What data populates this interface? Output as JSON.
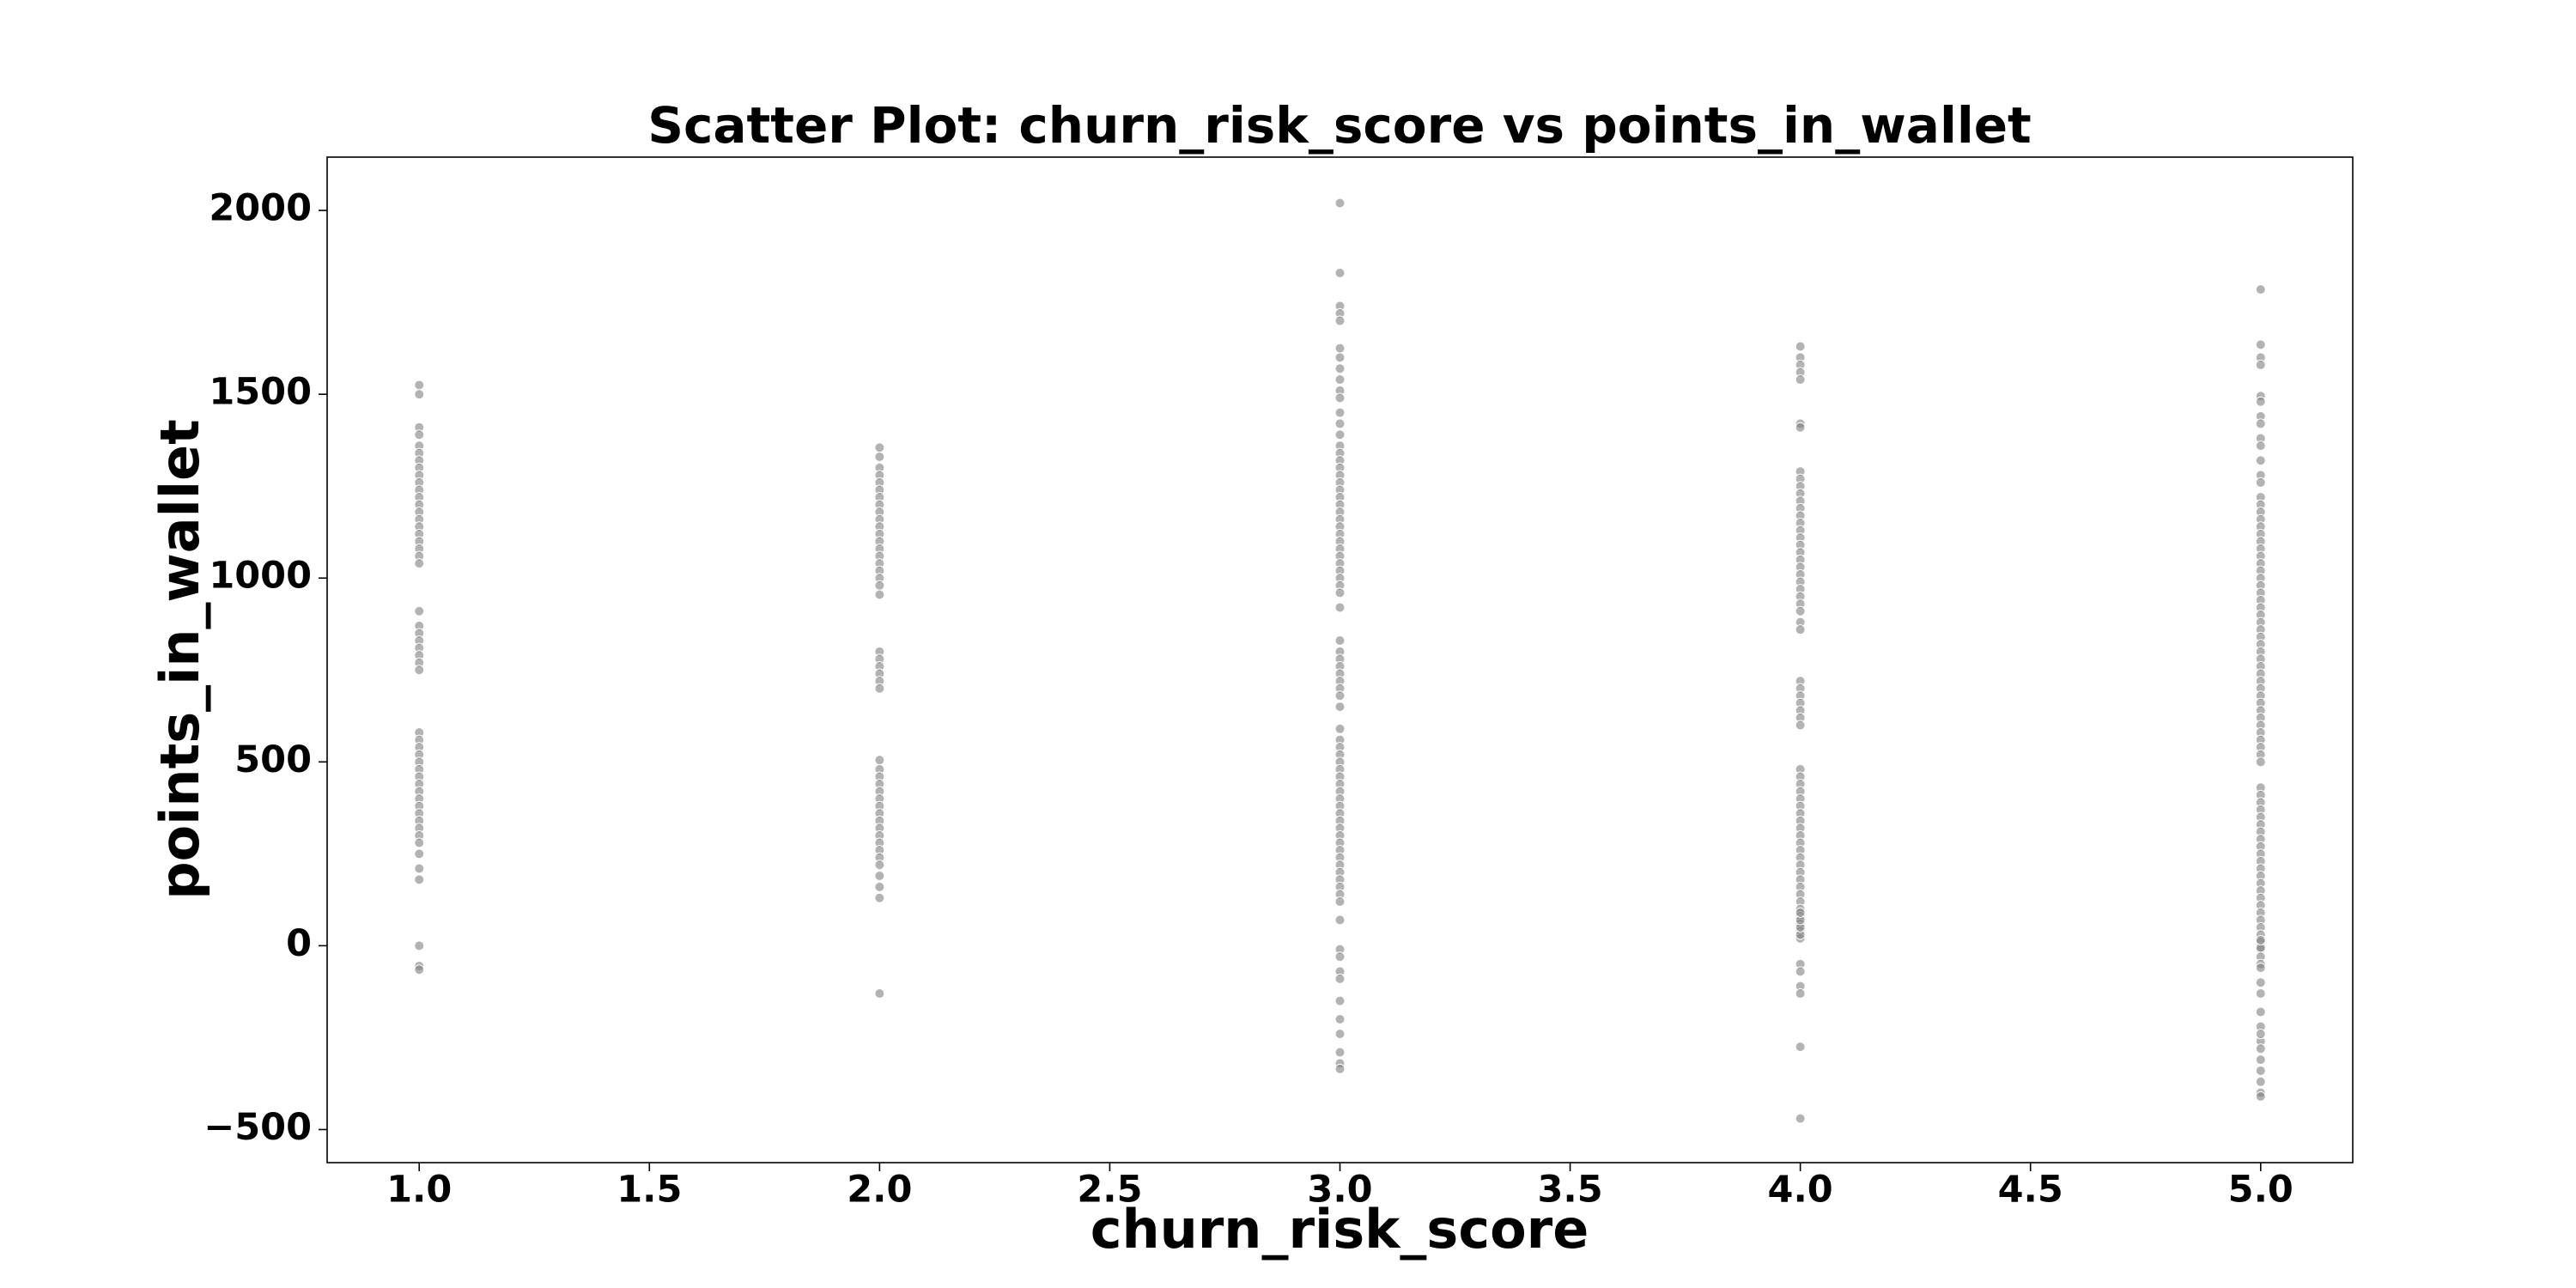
{
  "chart_data": {
    "type": "scatter",
    "title": "Scatter Plot: churn_risk_score vs points_in_wallet",
    "x_label": "churn_risk_score",
    "y_label": "points_in_wallet",
    "color": "#808080",
    "xlim": [
      0.8,
      5.2
    ],
    "ylim": [
      -590,
      2145
    ],
    "xticks": [
      {
        "value": 1,
        "label": "1.0"
      },
      1.5,
      {
        "value": 2,
        "label": "2.0"
      },
      2.5,
      {
        "value": 3,
        "label": "3.0"
      },
      3.5,
      {
        "value": 4,
        "label": "4.0"
      },
      4.5,
      {
        "value": 5,
        "label": "5.0"
      }
    ],
    "yticks": [
      {
        "value": -500,
        "label": "−500"
      },
      0,
      500,
      1000,
      1500,
      2000
    ],
    "x": [
      1,
      1,
      1,
      1,
      1,
      1,
      1,
      1,
      1,
      1,
      1,
      1,
      1,
      1,
      1,
      1,
      1,
      1,
      1,
      1,
      1,
      1,
      1,
      1,
      1,
      1,
      1,
      1,
      1,
      1,
      1,
      1,
      1,
      1,
      1,
      1,
      1,
      1,
      1,
      1,
      1,
      1,
      1,
      1,
      1,
      1,
      1,
      1,
      1,
      1,
      1,
      2,
      2,
      2,
      2,
      2,
      2,
      2,
      2,
      2,
      2,
      2,
      2,
      2,
      2,
      2,
      2,
      2,
      2,
      2,
      2,
      2,
      2,
      2,
      2,
      2,
      2,
      2,
      2,
      2,
      2,
      2,
      2,
      2,
      2,
      2,
      2,
      2,
      2,
      2,
      2,
      2,
      2,
      2,
      2,
      2,
      3,
      3,
      3,
      3,
      3,
      3,
      3,
      3,
      3,
      3,
      3,
      3,
      3,
      3,
      3,
      3,
      3,
      3,
      3,
      3,
      3,
      3,
      3,
      3,
      3,
      3,
      3,
      3,
      3,
      3,
      3,
      3,
      3,
      3,
      3,
      3,
      3,
      3,
      3,
      3,
      3,
      3,
      3,
      3,
      3,
      3,
      3,
      3,
      3,
      3,
      3,
      3,
      3,
      3,
      3,
      3,
      3,
      3,
      3,
      3,
      3,
      3,
      3,
      3,
      3,
      3,
      3,
      3,
      3,
      3,
      3,
      3,
      3,
      3,
      3,
      3,
      3,
      3,
      3,
      3,
      4,
      4,
      4,
      4,
      4,
      4,
      4,
      4,
      4,
      4,
      4,
      4,
      4,
      4,
      4,
      4,
      4,
      4,
      4,
      4,
      4,
      4,
      4,
      4,
      4,
      4,
      4,
      4,
      4,
      4,
      4,
      4,
      4,
      4,
      4,
      4,
      4,
      4,
      4,
      4,
      4,
      4,
      4,
      4,
      4,
      4,
      4,
      4,
      4,
      4,
      4,
      4,
      4,
      4,
      4,
      4,
      4,
      4,
      4,
      4,
      4,
      4,
      4,
      4,
      4,
      4,
      4,
      4,
      4,
      4,
      5,
      5,
      5,
      5,
      5,
      5,
      5,
      5,
      5,
      5,
      5,
      5,
      5,
      5,
      5,
      5,
      5,
      5,
      5,
      5,
      5,
      5,
      5,
      5,
      5,
      5,
      5,
      5,
      5,
      5,
      5,
      5,
      5,
      5,
      5,
      5,
      5,
      5,
      5,
      5,
      5,
      5,
      5,
      5,
      5,
      5,
      5,
      5,
      5,
      5,
      5,
      5,
      5,
      5,
      5,
      5,
      5,
      5,
      5,
      5,
      5,
      5,
      5,
      5,
      5,
      5,
      5,
      5,
      5,
      5,
      5,
      5,
      5,
      5,
      5,
      5,
      5,
      5,
      5,
      5,
      5,
      5,
      5,
      5,
      5,
      5,
      5,
      5,
      5,
      5
    ],
    "values": [
      1525,
      1500,
      1410,
      1390,
      1360,
      1340,
      1320,
      1300,
      1280,
      1260,
      1240,
      1220,
      1200,
      1180,
      1160,
      1140,
      1120,
      1100,
      1080,
      1060,
      1040,
      910,
      870,
      850,
      830,
      810,
      790,
      770,
      750,
      580,
      560,
      540,
      520,
      500,
      480,
      460,
      440,
      420,
      400,
      380,
      360,
      340,
      320,
      300,
      280,
      250,
      210,
      180,
      0,
      -55,
      -65,
      1355,
      1330,
      1300,
      1280,
      1260,
      1240,
      1220,
      1200,
      1180,
      1160,
      1140,
      1120,
      1100,
      1080,
      1060,
      1040,
      1020,
      1000,
      980,
      955,
      800,
      780,
      760,
      740,
      720,
      700,
      505,
      480,
      460,
      440,
      420,
      400,
      380,
      360,
      340,
      320,
      300,
      280,
      260,
      240,
      220,
      190,
      160,
      130,
      -130,
      2020,
      1830,
      1740,
      1720,
      1700,
      1625,
      1600,
      1570,
      1540,
      1510,
      1490,
      1450,
      1420,
      1390,
      1360,
      1340,
      1320,
      1300,
      1280,
      1260,
      1240,
      1220,
      1200,
      1180,
      1160,
      1140,
      1120,
      1100,
      1080,
      1060,
      1040,
      1020,
      1000,
      980,
      960,
      920,
      830,
      800,
      780,
      760,
      740,
      720,
      700,
      680,
      650,
      590,
      560,
      540,
      520,
      500,
      480,
      460,
      440,
      420,
      400,
      380,
      360,
      340,
      320,
      300,
      280,
      260,
      240,
      220,
      200,
      180,
      160,
      140,
      120,
      70,
      -10,
      -30,
      -70,
      -90,
      -150,
      -200,
      -240,
      -290,
      -320,
      -335,
      1630,
      1600,
      1580,
      1560,
      1540,
      1420,
      1410,
      1290,
      1270,
      1250,
      1230,
      1210,
      1190,
      1170,
      1150,
      1130,
      1110,
      1090,
      1070,
      1050,
      1030,
      1010,
      990,
      970,
      950,
      930,
      910,
      880,
      860,
      720,
      700,
      680,
      660,
      640,
      620,
      600,
      480,
      460,
      440,
      420,
      400,
      380,
      360,
      340,
      320,
      300,
      280,
      260,
      240,
      220,
      200,
      180,
      160,
      140,
      120,
      100,
      80,
      60,
      40,
      20,
      -50,
      -70,
      -110,
      -130,
      -275,
      -470,
      30,
      50,
      70,
      90,
      1785,
      1635,
      1600,
      1580,
      1495,
      1480,
      1440,
      1420,
      1380,
      1360,
      1320,
      1280,
      1260,
      1220,
      1200,
      1180,
      1160,
      1140,
      1120,
      1100,
      1080,
      1060,
      1040,
      1020,
      1000,
      980,
      960,
      940,
      920,
      900,
      880,
      860,
      840,
      820,
      800,
      780,
      760,
      740,
      720,
      700,
      680,
      660,
      640,
      620,
      600,
      580,
      560,
      540,
      520,
      500,
      430,
      410,
      390,
      370,
      350,
      330,
      310,
      290,
      270,
      250,
      230,
      210,
      190,
      170,
      150,
      130,
      110,
      90,
      70,
      50,
      30,
      10,
      -10,
      -30,
      -50,
      -60,
      -100,
      -130,
      -180,
      -220,
      -260,
      -280,
      -310,
      -340,
      -370,
      -400,
      -410,
      -240,
      -5,
      15
    ]
  }
}
